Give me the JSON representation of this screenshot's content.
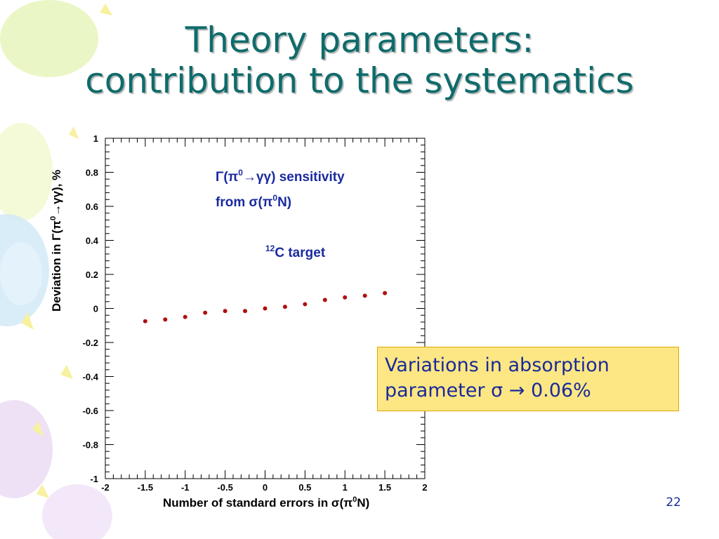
{
  "slide": {
    "title_line1": "Theory parameters:",
    "title_line2": "contribution to the systematics",
    "slide_number": "22",
    "callout_line1": "Variations in absorption",
    "callout_line2_text": "parameter ",
    "callout_sigma": "σ",
    "callout_arrow": "→",
    "callout_value": "0.06%"
  },
  "colors": {
    "title": "#0f6b6b",
    "annotation": "#1a2aa0",
    "marker": "#b01010",
    "callout_bg": "#fde784",
    "callout_border": "#e0a800"
  },
  "chart_data": {
    "type": "scatter",
    "annotation_line1_gamma": "Γ(π",
    "annotation_line1_sup": "0",
    "annotation_line1_rest": "→γγ) sensitivity",
    "annotation_line2_pre": "from σ(π",
    "annotation_line2_sup": "0",
    "annotation_line2_rest": "N)",
    "annotation_line3_sup": "12",
    "annotation_line3_rest": "C target",
    "xlabel_pre": "Number of standard errors in σ(π",
    "xlabel_sup": "0",
    "xlabel_post": "N)",
    "ylabel_pre": "Deviation in Γ(π",
    "ylabel_sup": "0",
    "ylabel_post": "→γγ), %",
    "xlim": [
      -2,
      2
    ],
    "ylim": [
      -1,
      1
    ],
    "xticks": [
      "-2",
      "-1.5",
      "-1",
      "-0.5",
      "0",
      "0.5",
      "1",
      "1.5",
      "2"
    ],
    "yticks": [
      "1",
      "0.8",
      "0.6",
      "0.4",
      "0.2",
      "0",
      "-0.2",
      "-0.4",
      "-0.6",
      "-0.8",
      "-1"
    ],
    "grid": false,
    "x": [
      -1.5,
      -1.25,
      -1.0,
      -0.75,
      -0.5,
      -0.25,
      0.0,
      0.25,
      0.5,
      0.75,
      1.0,
      1.25,
      1.5
    ],
    "y": [
      -0.075,
      -0.065,
      -0.05,
      -0.025,
      -0.015,
      -0.015,
      0.0,
      0.01,
      0.025,
      0.05,
      0.065,
      0.075,
      0.09
    ]
  }
}
